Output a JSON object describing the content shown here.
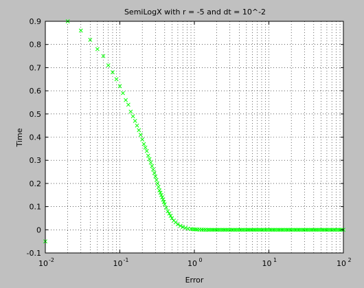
{
  "chart_data": {
    "type": "scatter",
    "title": "SemiLogX with r = -5 and dt = 10^-2",
    "xlabel": "Error",
    "ylabel": "Time",
    "xscale": "log",
    "xlim": [
      0.01,
      100
    ],
    "ylim": [
      -0.1,
      0.9
    ],
    "grid": true,
    "marker": "x",
    "marker_color": "#00ff00",
    "x_ticks": [
      {
        "base": "10",
        "exp": "-2"
      },
      {
        "base": "10",
        "exp": "-1"
      },
      {
        "base": "10",
        "exp": "0"
      },
      {
        "base": "10",
        "exp": "1"
      },
      {
        "base": "10",
        "exp": "2"
      }
    ],
    "y_ticks": [
      "-0.1",
      "0",
      "0.1",
      "0.2",
      "0.3",
      "0.4",
      "0.5",
      "0.6",
      "0.7",
      "0.8",
      "0.9"
    ],
    "series": [
      {
        "x": [
          0.01,
          0.02,
          0.03,
          0.04,
          0.05,
          0.06,
          0.07,
          0.08,
          0.09,
          0.1,
          0.11,
          0.12,
          0.13,
          0.14,
          0.15,
          0.16,
          0.17,
          0.18,
          0.19,
          0.2,
          0.21,
          0.22,
          0.23,
          0.24,
          0.25,
          0.26,
          0.27,
          0.28,
          0.29,
          0.3,
          0.31,
          0.32,
          0.33,
          0.34,
          0.35,
          0.36,
          0.37,
          0.38,
          0.39,
          0.4,
          0.42,
          0.44,
          0.46,
          0.48,
          0.5,
          0.53,
          0.56,
          0.6,
          0.65,
          0.7,
          0.76,
          0.82,
          0.9,
          1.0,
          1.1,
          1.25,
          1.5,
          2,
          3,
          5,
          8,
          12,
          20,
          35,
          60,
          100
        ],
        "y": [
          -0.05,
          0.9,
          0.86,
          0.82,
          0.78,
          0.75,
          0.71,
          0.68,
          0.65,
          0.62,
          0.59,
          0.56,
          0.54,
          0.51,
          0.49,
          0.47,
          0.45,
          0.43,
          0.41,
          0.39,
          0.37,
          0.355,
          0.34,
          0.32,
          0.305,
          0.29,
          0.275,
          0.26,
          0.245,
          0.23,
          0.215,
          0.2,
          0.185,
          0.17,
          0.16,
          0.15,
          0.14,
          0.13,
          0.12,
          0.11,
          0.095,
          0.08,
          0.07,
          0.06,
          0.05,
          0.04,
          0.032,
          0.024,
          0.017,
          0.012,
          0.008,
          0.005,
          0.003,
          0.002,
          0.001,
          0.0005,
          0,
          0,
          0,
          0,
          0,
          0,
          0,
          0,
          0,
          0
        ]
      }
    ]
  }
}
